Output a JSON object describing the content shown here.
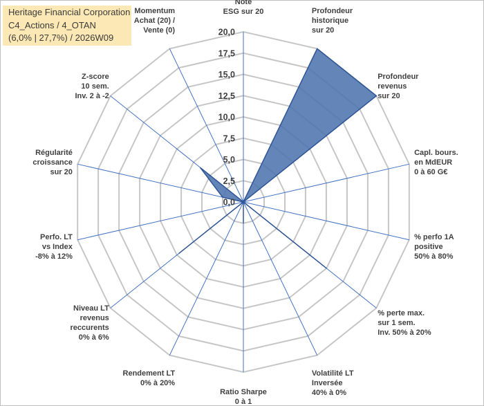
{
  "title": {
    "line1": "Heritage Financial Corporation",
    "line2": "C4_Actions / 4_OTAN",
    "line3": "(6,0% | 27,7%) / 2026W09"
  },
  "colors": {
    "series_fill": "#4f74ad",
    "series_stroke": "#2f5597",
    "spoke": "#4472c4",
    "grid": "#c6c6c6",
    "title_bg": "#fbe8b4"
  },
  "chart_data": {
    "type": "radar",
    "range": [
      0,
      20
    ],
    "ticks": [
      "0,0",
      "2,5",
      "5,0",
      "7,5",
      "10,0",
      "12,5",
      "15,0",
      "17,5",
      "20,0"
    ],
    "axes": [
      {
        "lines": [
          "Note",
          "ESG sur 20"
        ],
        "value": 0
      },
      {
        "lines": [
          "Profondeur",
          "historique",
          "sur 20"
        ],
        "value": 20
      },
      {
        "lines": [
          "Profondeur",
          "revenus",
          "sur 20"
        ],
        "value": 20
      },
      {
        "lines": [
          "Capl. bours.",
          "en MdEUR",
          "0 à 60 G€"
        ],
        "value": 0
      },
      {
        "lines": [
          "% perfo 1A",
          "positive",
          "50% à 80%"
        ],
        "value": 0
      },
      {
        "lines": [
          "% perte max.",
          "sur 1 sem.",
          "Inv. 50% à 20%"
        ],
        "value": 12.5
      },
      {
        "lines": [
          "Volatilité LT",
          "Inversée",
          "40% à 0%"
        ],
        "value": 0
      },
      {
        "lines": [
          "Ratio Sharpe",
          "0 à 1"
        ],
        "value": 2.5
      },
      {
        "lines": [
          "Rendement LT",
          "0% à 20%"
        ],
        "value": 0
      },
      {
        "lines": [
          "Niveau LT",
          "revenus",
          "reccurents",
          "0% à 6%"
        ],
        "value": 9.7
      },
      {
        "lines": [
          "Perfo. LT",
          "vs Index",
          "-8% à 12%"
        ],
        "value": 0
      },
      {
        "lines": [
          "Régularité",
          "croissance",
          "sur 20"
        ],
        "value": 2.5
      },
      {
        "lines": [
          "Z-score",
          "10 sem.",
          "Inv. 2 à -2"
        ],
        "value": 6.5
      },
      {
        "lines": [
          "Momentum",
          "Achat (20) /",
          "Vente (0)"
        ],
        "value": 0
      }
    ]
  }
}
